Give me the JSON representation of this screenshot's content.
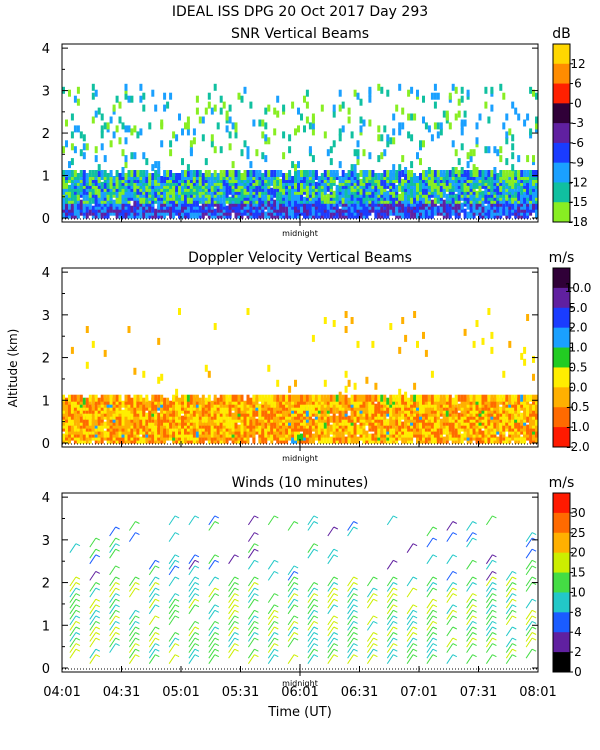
{
  "figure": {
    "title": "IDEAL ISS DPG  20 Oct 2017 Day 293",
    "ylabel": "Altitude (km)",
    "xlabel": "Time (UT)",
    "midnight_label": "midnight"
  },
  "chart_data": [
    {
      "type": "heatmap",
      "title": "SNR Vertical Beams",
      "colorbar_unit": "dB",
      "colorbar_ticks": [
        "12",
        "6",
        "0",
        "-3",
        "-6",
        "-9",
        "-12",
        "-15",
        "-18"
      ],
      "colorbar_colors": [
        "#ffd700",
        "#ff8c00",
        "#ff2000",
        "#300038",
        "#6020a0",
        "#1a3cff",
        "#1aa0ff",
        "#10c0a0",
        "#88ee22"
      ],
      "ylim": [
        0,
        4
      ],
      "yticks": [
        "0",
        "1",
        "2",
        "3",
        "4"
      ],
      "x_range_minutes": [
        0,
        240
      ],
      "description": "Strong returns (-9 to -18 dB, purple/blue near surface) from 0.2-1.2 km throughout; sparse weak returns 1.5-3 km"
    },
    {
      "type": "heatmap",
      "title": "Doppler Velocity Vertical Beams",
      "colorbar_unit": "m/s",
      "colorbar_ticks": [
        "10.0",
        "5.0",
        "2.0",
        "1.0",
        "0.5",
        "0.0",
        "-0.5",
        "-1.0",
        "-2.0"
      ],
      "colorbar_colors": [
        "#300038",
        "#6020a0",
        "#1a3cff",
        "#1aa0ff",
        "#22cc22",
        "#ffee00",
        "#ffb000",
        "#ff6a00",
        "#ff1a00"
      ],
      "ylim": [
        0,
        4
      ],
      "yticks": [
        "0",
        "1",
        "2",
        "3",
        "4"
      ],
      "x_range_minutes": [
        0,
        240
      ],
      "description": "Near-zero to slightly negative velocities (yellow/orange) 0.2-1.1 km"
    },
    {
      "type": "scatter",
      "title": "Winds (10 minutes)",
      "colorbar_unit": "m/s",
      "colorbar_ticks": [
        "30",
        "25",
        "20",
        "15",
        "10",
        "8",
        "4",
        "2",
        "0"
      ],
      "colorbar_colors": [
        "#ff1a00",
        "#ff6a00",
        "#ffb000",
        "#ccee00",
        "#44dd44",
        "#22c8c8",
        "#1a5cff",
        "#6020a0",
        "#000000"
      ],
      "ylim": [
        0,
        4
      ],
      "yticks": [
        "0",
        "1",
        "2",
        "3",
        "4"
      ],
      "xticks": [
        "04:01",
        "04:31",
        "05:01",
        "05:31",
        "06:01",
        "06:31",
        "07:01",
        "07:31",
        "08:01"
      ],
      "x_range_minutes": [
        0,
        240
      ],
      "interval_minutes": 10,
      "description": "Wind barbs every 10 min, ~10-15 m/s low levels (green), weaker 2-8 m/s aloft near 3 km (blue/purple)"
    }
  ]
}
